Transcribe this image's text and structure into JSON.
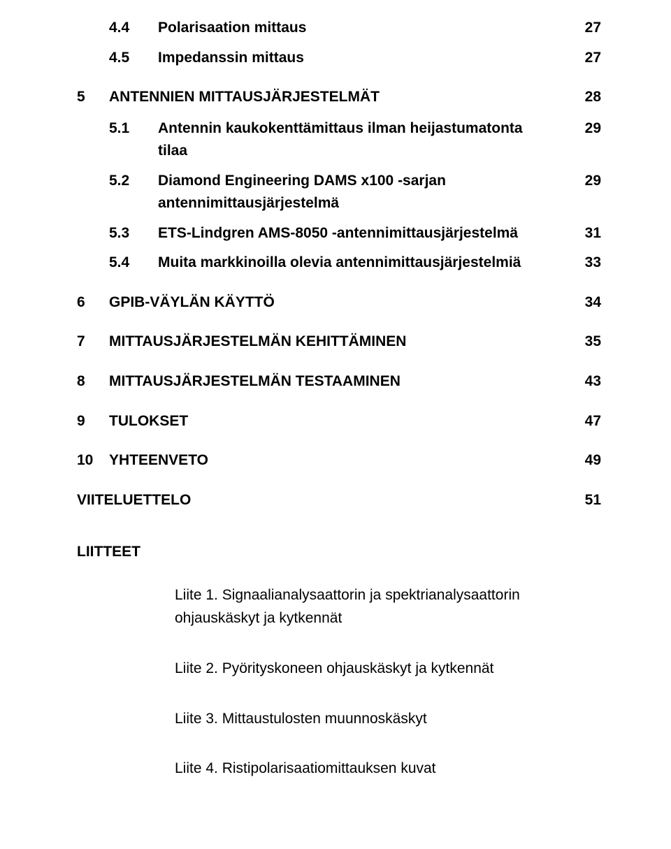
{
  "toc": {
    "sub_4_4": {
      "num": "4.4",
      "text": "Polarisaation mittaus",
      "page": "27"
    },
    "sub_4_5": {
      "num": "4.5",
      "text": "Impedanssin mittaus",
      "page": "27"
    },
    "sec_5": {
      "num": "5",
      "text": "ANTENNIEN MITTAUSJÄRJESTELMÄT",
      "page": "28"
    },
    "sub_5_1": {
      "num": "5.1",
      "text": "Antennin kaukokenttämittaus ilman heijastumatonta tilaa",
      "page": "29"
    },
    "sub_5_2": {
      "num": "5.2",
      "text": "Diamond Engineering DAMS x100 -sarjan antennimittausjärjestelmä",
      "page": "29"
    },
    "sub_5_3": {
      "num": "5.3",
      "text": "ETS-Lindgren AMS-8050 -antennimittausjärjestelmä",
      "page": "31"
    },
    "sub_5_4": {
      "num": "5.4",
      "text": "Muita markkinoilla olevia antennimittausjärjestelmiä",
      "page": "33"
    },
    "sec_6": {
      "num": "6",
      "text": "GPIB-VÄYLÄN KÄYTTÖ",
      "page": "34"
    },
    "sec_7": {
      "num": "7",
      "text": "MITTAUSJÄRJESTELMÄN KEHITTÄMINEN",
      "page": "35"
    },
    "sec_8": {
      "num": "8",
      "text": "MITTAUSJÄRJESTELMÄN TESTAAMINEN",
      "page": "43"
    },
    "sec_9": {
      "num": "9",
      "text": "TULOKSET",
      "page": "47"
    },
    "sec_10": {
      "num": "10",
      "text": "YHTEENVETO",
      "page": "49"
    },
    "viite": {
      "text": "VIITELUETTELO",
      "page": "51"
    }
  },
  "liitteet": {
    "heading": "LIITTEET",
    "items": {
      "l1": "Liite 1. Signaalianalysaattorin ja spektrianalysaattorin ohjauskäskyt ja kytkennät",
      "l2": "Liite 2. Pyörityskoneen ohjauskäskyt ja kytkennät",
      "l3": "Liite 3. Mittaustulosten muunnoskäskyt",
      "l4": "Liite 4. Ristipolarisaatiomittauksen kuvat"
    }
  }
}
